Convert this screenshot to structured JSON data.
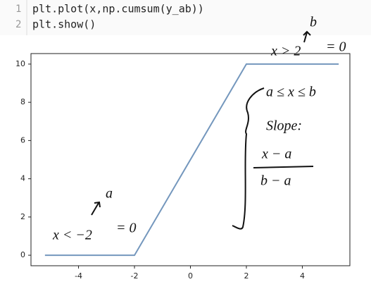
{
  "code": {
    "lines": [
      {
        "number": "1",
        "text": "plt.plot(x,np.cumsum(y_ab))"
      },
      {
        "number": "2",
        "text": "plt.show()"
      }
    ]
  },
  "chart_data": {
    "type": "line",
    "x": [
      -5.2,
      -2,
      2,
      5.3
    ],
    "values": [
      0,
      0,
      10,
      10
    ],
    "color": "#7497bd",
    "xlim": [
      -5.7,
      5.7
    ],
    "xticks": [
      -4,
      -2,
      0,
      2,
      4
    ],
    "ylim": [
      -0.55,
      10.55
    ],
    "yticks": [
      0,
      2,
      4,
      6,
      8,
      10
    ],
    "annotations": [
      "x > 2",
      "= 0",
      "b",
      "a ≤ x ≤ b",
      "Slope:",
      "x − a",
      "b − a",
      "x < −2",
      "= 0",
      "a"
    ]
  }
}
